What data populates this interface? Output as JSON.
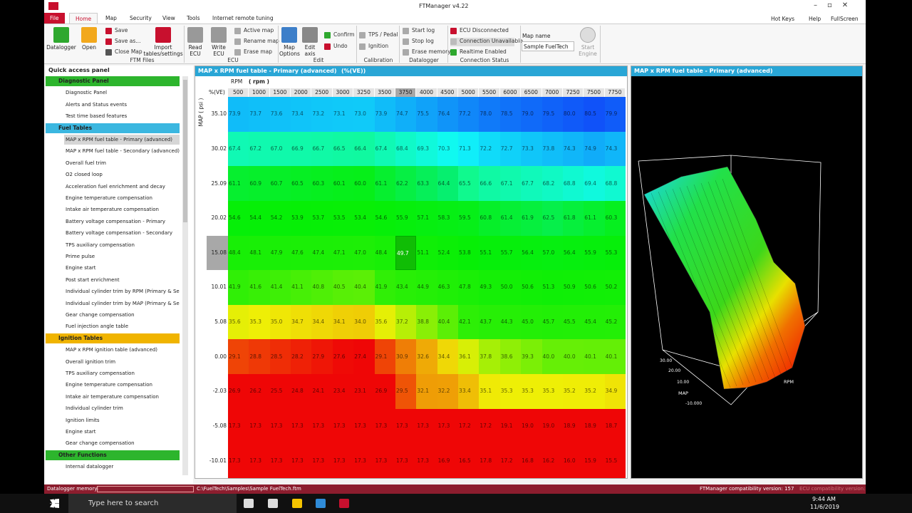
{
  "window": {
    "title": "FTManager v4.22",
    "tabs": [
      "File",
      "Home",
      "Map",
      "Security",
      "View",
      "Tools",
      "Internet remote tuning"
    ],
    "right": [
      "Hot Keys",
      "Help",
      "FullScreen"
    ]
  },
  "ribbon": {
    "groups": [
      {
        "name": "FTM Files",
        "buttons": [
          "Datalogger",
          "Open",
          "Save",
          "Save as...",
          "Close Map",
          "Import tables/settings"
        ]
      },
      {
        "name": "ECU",
        "buttons": [
          "Read ECU",
          "Write ECU",
          "Active map",
          "Rename map",
          "Erase map"
        ]
      },
      {
        "name": "Edit",
        "buttons": [
          "Map Options",
          "Edit axis",
          "Confirm",
          "Undo"
        ]
      },
      {
        "name": "Calibration",
        "buttons": [
          "TPS / Pedal",
          "Ignition"
        ]
      },
      {
        "name": "Datalogger",
        "buttons": [
          "Start log",
          "Stop log",
          "Erase memory"
        ]
      },
      {
        "name": "Connection Status",
        "buttons": [
          "ECU Disconnected",
          "Connection Unavailable",
          "Realtime Enabled"
        ]
      }
    ],
    "map_name_label": "Map name",
    "map_name": "Sample FuelTech",
    "start_engine": "Start Engine"
  },
  "sidebar": {
    "title": "Quick access panel",
    "sections": [
      {
        "title": "Diagnostic Panel",
        "items": [
          "Diagnostic Panel",
          "Alerts and Status events",
          "Test time based features"
        ]
      },
      {
        "title": "Fuel Tables",
        "items": [
          "MAP x RPM fuel table - Primary (advanced)",
          "MAP x RPM fuel table - Secondary (advanced)",
          "Overall fuel trim",
          "O2 closed loop",
          "Acceleration fuel enrichment and decay",
          "Engine temperature compensation",
          "Intake air temperature compensation",
          "Battery voltage compensation - Primary",
          "Battery voltage compensation - Secondary",
          "TPS auxiliary compensation",
          "Prime pulse",
          "Engine start",
          "Post start enrichment",
          "Individual cylinder trim by RPM (Primary & Secon",
          "Individual cylinder trim by MAP (Primary & Secon",
          "Gear change compensation",
          "Fuel injection angle table"
        ]
      },
      {
        "title": "Ignition Tables",
        "items": [
          "MAP x RPM ignition table (advanced)",
          "Overall ignition trim",
          "TPS auxiliary compensation",
          "Engine temperature compensation",
          "Intake air temperature compensation",
          "Individual cylinder trim",
          "Ignition limits",
          "Engine start",
          "Gear change compensation"
        ]
      },
      {
        "title": "Other Functions",
        "items": [
          "Internal datalogger"
        ]
      }
    ]
  },
  "table": {
    "title": "MAP x RPM fuel table - Primary (advanced)",
    "unit": "(%(VE))",
    "corner": "%(VE)",
    "x_label": "RPM",
    "x_unit": "( rpm )",
    "y_label": "MAP ( psi )",
    "columns": [
      500,
      1000,
      1500,
      2000,
      2500,
      3000,
      3250,
      3500,
      3750,
      4000,
      4500,
      5000,
      5500,
      6000,
      6500,
      7000,
      7250,
      7500,
      7750
    ],
    "rows": [
      {
        "map": "35.10",
        "values": [
          "73.9",
          "73.7",
          "73.6",
          "73.4",
          "73.2",
          "73.1",
          "73.0",
          "73.9",
          "74.7",
          "75.5",
          "76.4",
          "77.2",
          "78.0",
          "78.5",
          "79.0",
          "79.5",
          "80.0",
          "80.5",
          "79.9"
        ]
      },
      {
        "map": "30.02",
        "values": [
          "67.4",
          "67.2",
          "67.0",
          "66.9",
          "66.7",
          "66.5",
          "66.4",
          "67.4",
          "68.4",
          "69.3",
          "70.3",
          "71.3",
          "72.2",
          "72.7",
          "73.3",
          "73.8",
          "74.3",
          "74.9",
          "74.3"
        ]
      },
      {
        "map": "25.09",
        "values": [
          "61.1",
          "60.9",
          "60.7",
          "60.5",
          "60.3",
          "60.1",
          "60.0",
          "61.1",
          "62.2",
          "63.3",
          "64.4",
          "65.5",
          "66.6",
          "67.1",
          "67.7",
          "68.2",
          "68.8",
          "69.4",
          "68.8"
        ]
      },
      {
        "map": "20.02",
        "values": [
          "54.6",
          "54.4",
          "54.2",
          "53.9",
          "53.7",
          "53.5",
          "53.4",
          "54.6",
          "55.9",
          "57.1",
          "58.3",
          "59.5",
          "60.8",
          "61.4",
          "61.9",
          "62.5",
          "61.8",
          "61.1",
          "60.3"
        ]
      },
      {
        "map": "15.08",
        "values": [
          "48.4",
          "48.1",
          "47.9",
          "47.6",
          "47.4",
          "47.1",
          "47.0",
          "48.4",
          "49.7",
          "51.1",
          "52.4",
          "53.8",
          "55.1",
          "55.7",
          "56.4",
          "57.0",
          "56.4",
          "55.9",
          "55.3"
        ]
      },
      {
        "map": "10.01",
        "values": [
          "41.9",
          "41.6",
          "41.4",
          "41.1",
          "40.8",
          "40.5",
          "40.4",
          "41.9",
          "43.4",
          "44.9",
          "46.3",
          "47.8",
          "49.3",
          "50.0",
          "50.6",
          "51.3",
          "50.9",
          "50.6",
          "50.2"
        ]
      },
      {
        "map": "5.08",
        "values": [
          "35.6",
          "35.3",
          "35.0",
          "34.7",
          "34.4",
          "34.1",
          "34.0",
          "35.6",
          "37.2",
          "38.8",
          "40.4",
          "42.1",
          "43.7",
          "44.3",
          "45.0",
          "45.7",
          "45.5",
          "45.4",
          "45.2"
        ]
      },
      {
        "map": "0.00",
        "values": [
          "29.1",
          "28.8",
          "28.5",
          "28.2",
          "27.9",
          "27.6",
          "27.4",
          "29.1",
          "30.9",
          "32.6",
          "34.4",
          "36.1",
          "37.8",
          "38.6",
          "39.3",
          "40.0",
          "40.0",
          "40.1",
          "40.1"
        ]
      },
      {
        "map": "-2.03",
        "values": [
          "26.9",
          "26.2",
          "25.5",
          "24.8",
          "24.1",
          "23.4",
          "23.1",
          "26.9",
          "29.5",
          "32.1",
          "32.2",
          "33.4",
          "35.1",
          "35.3",
          "35.3",
          "35.3",
          "35.2",
          "35.2",
          "34.9"
        ]
      },
      {
        "map": "-5.08",
        "values": [
          "17.3",
          "17.3",
          "17.3",
          "17.3",
          "17.3",
          "17.3",
          "17.3",
          "17.3",
          "17.3",
          "17.3",
          "17.3",
          "17.2",
          "17.2",
          "19.1",
          "19.0",
          "19.0",
          "18.9",
          "18.9",
          "18.7"
        ]
      },
      {
        "map": "-10.01",
        "values": [
          "17.3",
          "17.3",
          "17.3",
          "17.3",
          "17.3",
          "17.3",
          "17.3",
          "17.3",
          "17.3",
          "17.3",
          "16.9",
          "16.5",
          "17.8",
          "17.2",
          "16.8",
          "16.2",
          "16.0",
          "15.9",
          "15.5"
        ]
      }
    ]
  },
  "plot3d": {
    "title": "MAP x RPM fuel table - Primary (advanced)",
    "map_axis": "MAP",
    "rpm_axis": "RPM",
    "map_ticks": [
      "30.00",
      "20.00",
      "10.00",
      "-10.000"
    ]
  },
  "status": {
    "memory": "Datalogger memory:",
    "file": "C:\\FuelTech\\Samples\\Sample FuelTech.ftm",
    "ftm": "FTManager compatibility version: 157",
    "ecu": "ECU compatibility version:"
  },
  "taskbar": {
    "search": "Type here to search",
    "time": "9:44 AM",
    "date": "11/6/2019"
  }
}
